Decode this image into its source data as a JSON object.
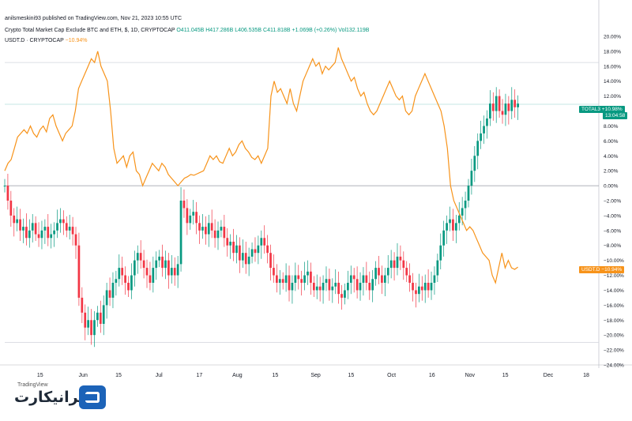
{
  "header": {
    "publisher": "anilsmeskini93 published on TradingView.com, Nov 21, 2023 10:55 UTC",
    "symbol_line": "Crypto Total Market Cap Exclude BTC and ETH, $, 1D, CRYPTOCAP",
    "o": "O411.045B",
    "h": "H417.286B",
    "l": "L406.535B",
    "c": "C411.818B",
    "chg": "+1.069B (+0.26%)",
    "vol": "Vol132.119B",
    "series2_name": "USDT.D · CRYPTOCAP",
    "series2_val": "−10.94%"
  },
  "tags": {
    "total3_label": "TOTAL3",
    "total3_value": "+10.98%",
    "total3_time": "13:04:58",
    "usdt_label": "USDT.D",
    "usdt_value": "−10.94%"
  },
  "watermark": {
    "brand_small": "TradingView",
    "logo_text": "ایرانیکارت"
  },
  "colors": {
    "up": "#089981",
    "down": "#f23645",
    "line": "#f7931a",
    "grid": "#e0e3eb",
    "text": "#131722"
  },
  "chart_data": {
    "type": "candlestick+line",
    "y_axis": {
      "unit": "%",
      "range": [
        -24,
        20
      ],
      "ticks": [
        "20.00%",
        "18.00%",
        "16.00%",
        "14.00%",
        "12.00%",
        "10.00%",
        "8.00%",
        "6.00%",
        "4.00%",
        "2.00%",
        "0.00%",
        "−2.00%",
        "−4.00%",
        "−6.00%",
        "−8.00%",
        "−10.00%",
        "−12.00%",
        "−14.00%",
        "−16.00%",
        "−18.00%",
        "−20.00%",
        "−22.00%",
        "−24.00%"
      ]
    },
    "x_axis": {
      "ticks": [
        "15",
        "Jun",
        "15",
        "Jul",
        "17",
        "Aug",
        "15",
        "Sep",
        "15",
        "Oct",
        "16",
        "Nov",
        "15",
        "Dec",
        "18"
      ],
      "tick_days": [
        15,
        32,
        46,
        62,
        78,
        93,
        108,
        124,
        138,
        154,
        170,
        185,
        199,
        216,
        231
      ]
    },
    "horizontal_lines": [
      16.5,
      10.9,
      0,
      -21
    ],
    "series": [
      {
        "name": "TOTAL3",
        "kind": "candles",
        "last_value": 10.98,
        "closes": [
          0,
          -2,
          -4,
          -5,
          -4.5,
          -6,
          -5.5,
          -7,
          -6,
          -5,
          -6.5,
          -7,
          -6,
          -5.5,
          -7,
          -6.5,
          -6,
          -5,
          -4.5,
          -5,
          -6,
          -5.5,
          -6.5,
          -8,
          -15,
          -17,
          -19,
          -18,
          -20,
          -18,
          -17,
          -18.5,
          -16,
          -14,
          -15,
          -13,
          -12.5,
          -11,
          -12,
          -13,
          -14,
          -12,
          -10,
          -9,
          -10,
          -11,
          -12,
          -13,
          -11,
          -10,
          -9.5,
          -11,
          -10,
          -12,
          -11,
          -12,
          -10.5,
          -2,
          -3,
          -5,
          -4,
          -3.5,
          -5,
          -6,
          -5.5,
          -6.5,
          -5,
          -6,
          -7,
          -6,
          -5.5,
          -7,
          -8,
          -7.5,
          -9,
          -8,
          -10,
          -9,
          -10.5,
          -9.5,
          -8.5,
          -9,
          -8,
          -7,
          -8,
          -9,
          -11,
          -12,
          -13,
          -12.5,
          -13,
          -12,
          -14,
          -13,
          -12,
          -12.5,
          -13,
          -12,
          -11.5,
          -13,
          -14,
          -13.5,
          -14,
          -13,
          -12.5,
          -14,
          -13.5,
          -13,
          -14.5,
          -15,
          -14,
          -13,
          -12,
          -12.5,
          -14,
          -13,
          -12,
          -13,
          -14,
          -12.5,
          -11,
          -12,
          -13,
          -12,
          -11,
          -10,
          -11,
          -9.5,
          -10,
          -11,
          -12,
          -13,
          -14,
          -14.5,
          -13.5,
          -14,
          -13,
          -14,
          -13,
          -12,
          -10,
          -8,
          -6,
          -5,
          -4.5,
          -6,
          -5,
          -4,
          -3,
          -2,
          0,
          2,
          4,
          6,
          7,
          8,
          9,
          11,
          10,
          12,
          10,
          9.5,
          11,
          10,
          11.5,
          10.5,
          11
        ]
      },
      {
        "name": "USDT.D",
        "kind": "line",
        "last_value": -10.94,
        "values": [
          2,
          3,
          3.5,
          5,
          6.5,
          7,
          7.5,
          7,
          8,
          7,
          6.5,
          7.5,
          8,
          7.2,
          9,
          9.5,
          8,
          7,
          6,
          7,
          7.5,
          8,
          10,
          13,
          14,
          15,
          16,
          17,
          16.5,
          18,
          16,
          15,
          14,
          10,
          5,
          3,
          3.5,
          4,
          2.5,
          4,
          4.5,
          2,
          1.5,
          0,
          1,
          2,
          3,
          2.5,
          2,
          3,
          2.5,
          1.5,
          1,
          0.5,
          0,
          0.5,
          1,
          1.2,
          1.5,
          1.4,
          1.6,
          1.8,
          2,
          3,
          4,
          3.5,
          4,
          3.2,
          3,
          4,
          5,
          4,
          4.5,
          5.5,
          6,
          5,
          4.5,
          3.8,
          3.5,
          4,
          3,
          4,
          5,
          12,
          14,
          12.5,
          13,
          12,
          11,
          13,
          11,
          10,
          12,
          14,
          15,
          16,
          17,
          16,
          16.5,
          15,
          16,
          15.5,
          16,
          16.5,
          18.5,
          17,
          16,
          15,
          14,
          14.5,
          13,
          12,
          12.5,
          11,
          10,
          9.5,
          10,
          11,
          12,
          13,
          14,
          13,
          12,
          11.5,
          12,
          10,
          9.5,
          10,
          12,
          13,
          14,
          15,
          14,
          13,
          12,
          11,
          10,
          8,
          5,
          0,
          -2,
          -3,
          -4,
          -5,
          -6,
          -5.5,
          -6,
          -7,
          -8,
          -9,
          -9.5,
          -10,
          -12,
          -13,
          -11,
          -9,
          -11,
          -10,
          -11,
          -11.2,
          -10.9
        ]
      }
    ]
  }
}
